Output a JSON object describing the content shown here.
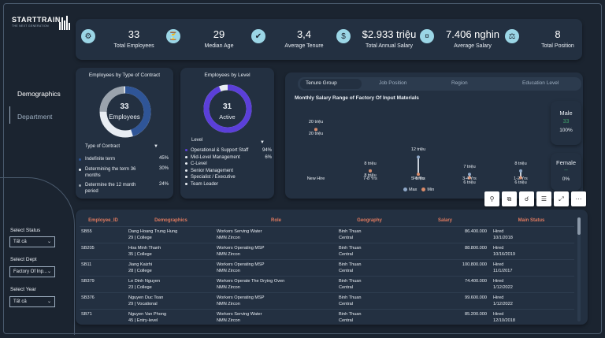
{
  "brand": {
    "name": "STARTTRAIN",
    "tagline": "THE NEXT GENERATION"
  },
  "kpis": [
    {
      "value": "33",
      "label": "Total Employees",
      "icon": "people-icon"
    },
    {
      "value": "29",
      "label": "Median Age",
      "icon": "hourglass-icon"
    },
    {
      "value": "3,4",
      "label": "Average Tenure",
      "icon": "tenure-icon"
    },
    {
      "value": "$2.933 triệu",
      "label": "Total Annual Salary",
      "icon": "money-bag-icon"
    },
    {
      "value": "7.406 nghin",
      "label": "Average Salary",
      "icon": "salary-icon"
    },
    {
      "value": "8",
      "label": "Total Position",
      "icon": "handshake-icon"
    }
  ],
  "nav": {
    "demographics": "Demographics",
    "department": "Department"
  },
  "slicers": {
    "status": {
      "label": "Select Status",
      "value": "Tất cả"
    },
    "dept": {
      "label": "Select Dept",
      "value": "Factory Of Inp..."
    },
    "year": {
      "label": "Select Year",
      "value": "Tất cả"
    }
  },
  "contract_panel": {
    "title": "Employees by Type of Contract",
    "center_value": "33",
    "center_label": "Employees",
    "legend_title": "Type of Contract",
    "items": [
      {
        "label": "Indefinite term",
        "pct": "45%",
        "color": "#2f5597"
      },
      {
        "label": "Determining the term 36 months",
        "pct": "30%",
        "color": "#e8edf3"
      },
      {
        "label": "Determine the 12 month period",
        "pct": "24%",
        "color": "#9aa3ad"
      }
    ]
  },
  "level_panel": {
    "title": "Employees by Level",
    "center_value": "31",
    "center_label": "Active",
    "legend_title": "Level",
    "items": [
      {
        "label": "Operational & Support Staff",
        "pct": "94%",
        "color": "#5b3fd9"
      },
      {
        "label": "Mid-Level Management",
        "pct": "6%",
        "color": "#e8edf3"
      },
      {
        "label": "C-Level",
        "pct": "",
        "color": "#e8edf3"
      },
      {
        "label": "Senior Management",
        "pct": "",
        "color": "#e8edf3"
      },
      {
        "label": "Specialist / Executive",
        "pct": "",
        "color": "#e8edf3"
      },
      {
        "label": "Team Leader",
        "pct": "",
        "color": "#e8edf3"
      }
    ]
  },
  "tabs": [
    "Tenure Group",
    "Job Position",
    "Region",
    "Education Level"
  ],
  "chart_data": {
    "type": "scatter",
    "title": "Monthly Salary Range of Factory Of Input Materials",
    "categories": [
      "New Hire",
      "7-8 Yrs",
      "5-6 Yrs",
      "3-4 Yrs",
      "1-2 Yrs"
    ],
    "series": [
      {
        "name": "Max",
        "values": [
          20,
          8,
          12,
          7,
          8
        ],
        "labels": [
          "20 triệu",
          "8 triệu",
          "12 triệu",
          "7 triệu",
          "8 triệu"
        ],
        "color": "#8fa8c8"
      },
      {
        "name": "Min",
        "values": [
          20,
          8,
          7,
          6,
          6
        ],
        "labels": [
          "20 triệu",
          "8 triệu",
          "7 triệu",
          "6 triệu",
          "6 triệu"
        ],
        "color": "#d98b6a"
      }
    ],
    "legend": "bottom-center",
    "grid": false
  },
  "gender": {
    "male": {
      "label": "Male",
      "count": "33",
      "pct": "100%"
    },
    "female": {
      "label": "Female",
      "count": "--",
      "pct": "0%"
    }
  },
  "table": {
    "headers": [
      "Employee_ID",
      "Demographics",
      "Role",
      "Geography",
      "Salary",
      "Main Status"
    ],
    "rows": [
      {
        "id": "SB55",
        "demo1": "Dang Hoang Trung Hung",
        "demo2": "29 | College",
        "role1": "Workers Serving Water",
        "role2": "NMN Zircon",
        "geo1": "Binh Thuan",
        "geo2": "Central",
        "salary": "86.400.000",
        "status1": "Hired",
        "status2": "10/1/2018"
      },
      {
        "id": "SB205",
        "demo1": "Hoa Minh Thanh",
        "demo2": "35 | College",
        "role1": "Workers Operating MSP",
        "role2": "NMN Zircon",
        "geo1": "Binh Thuan",
        "geo2": "Central",
        "salary": "88.800.000",
        "status1": "Hired",
        "status2": "10/16/2019"
      },
      {
        "id": "SB11",
        "demo1": "Jiang Kaizhi",
        "demo2": "28 | College",
        "role1": "Workers Operating MSP",
        "role2": "NMN Zircon",
        "geo1": "Binh Thuan",
        "geo2": "Central",
        "salary": "100.800.000",
        "status1": "Hired",
        "status2": "11/1/2017"
      },
      {
        "id": "SB379",
        "demo1": "Le Dinh Nguyen",
        "demo2": "23 | College",
        "role1": "Workers Operate The Drying Oven",
        "role2": "NMN Zircon",
        "geo1": "Binh Thuan",
        "geo2": "Central",
        "salary": "74.400.000",
        "status1": "Hired",
        "status2": "1/12/2022"
      },
      {
        "id": "SB376",
        "demo1": "Nguyen Duc Toan",
        "demo2": "29 | Vocational",
        "role1": "Workers Operating MSP",
        "role2": "NMN Zircon",
        "geo1": "Binh Thuan",
        "geo2": "Central",
        "salary": "99.600.000",
        "status1": "Hired",
        "status2": "1/12/2022"
      },
      {
        "id": "SB71",
        "demo1": "Nguyen Van Phong",
        "demo2": "45 | Entry-level",
        "role1": "Workers Serving Water",
        "role2": "NMN Zircon",
        "geo1": "Binh Thuan",
        "geo2": "Central",
        "salary": "85.200.000",
        "status1": "Hired",
        "status2": "12/10/2018"
      }
    ]
  },
  "toolbar": [
    "pin-icon",
    "copy-icon",
    "bell-icon",
    "filter-icon",
    "expand-icon",
    "more-icon"
  ]
}
